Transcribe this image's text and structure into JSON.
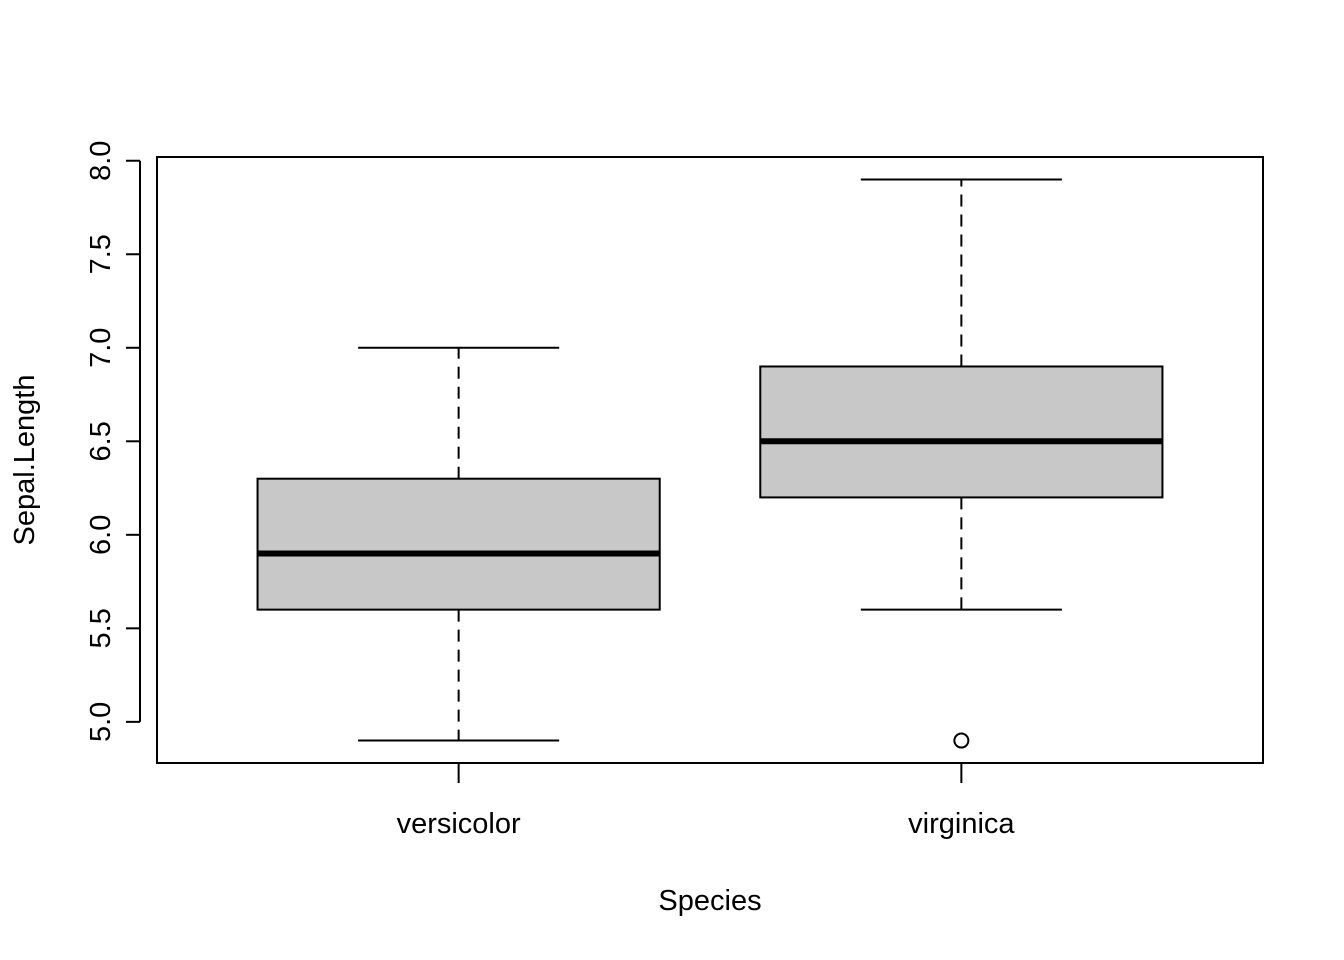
{
  "chart_data": {
    "type": "boxplot",
    "title": "",
    "xlabel": "Species",
    "ylabel": "Sepal.Length",
    "ylim": [
      4.78,
      8.02
    ],
    "yticks": [
      "5.0",
      "5.5",
      "6.0",
      "6.5",
      "7.0",
      "7.5",
      "8.0"
    ],
    "categories": [
      "versicolor",
      "virginica"
    ],
    "boxes": [
      {
        "category": "versicolor",
        "whisker_low": 4.9,
        "q1": 5.6,
        "median": 5.9,
        "q3": 6.3,
        "whisker_high": 7.0,
        "outliers": []
      },
      {
        "category": "virginica",
        "whisker_low": 5.6,
        "q1": 6.2,
        "median": 6.5,
        "q3": 6.9,
        "whisker_high": 7.9,
        "outliers": [
          4.9
        ]
      }
    ],
    "grid": false,
    "legend": "none",
    "colors": {
      "box_fill": "#c8c8c8",
      "stroke": "#000000",
      "background": "#ffffff"
    }
  }
}
